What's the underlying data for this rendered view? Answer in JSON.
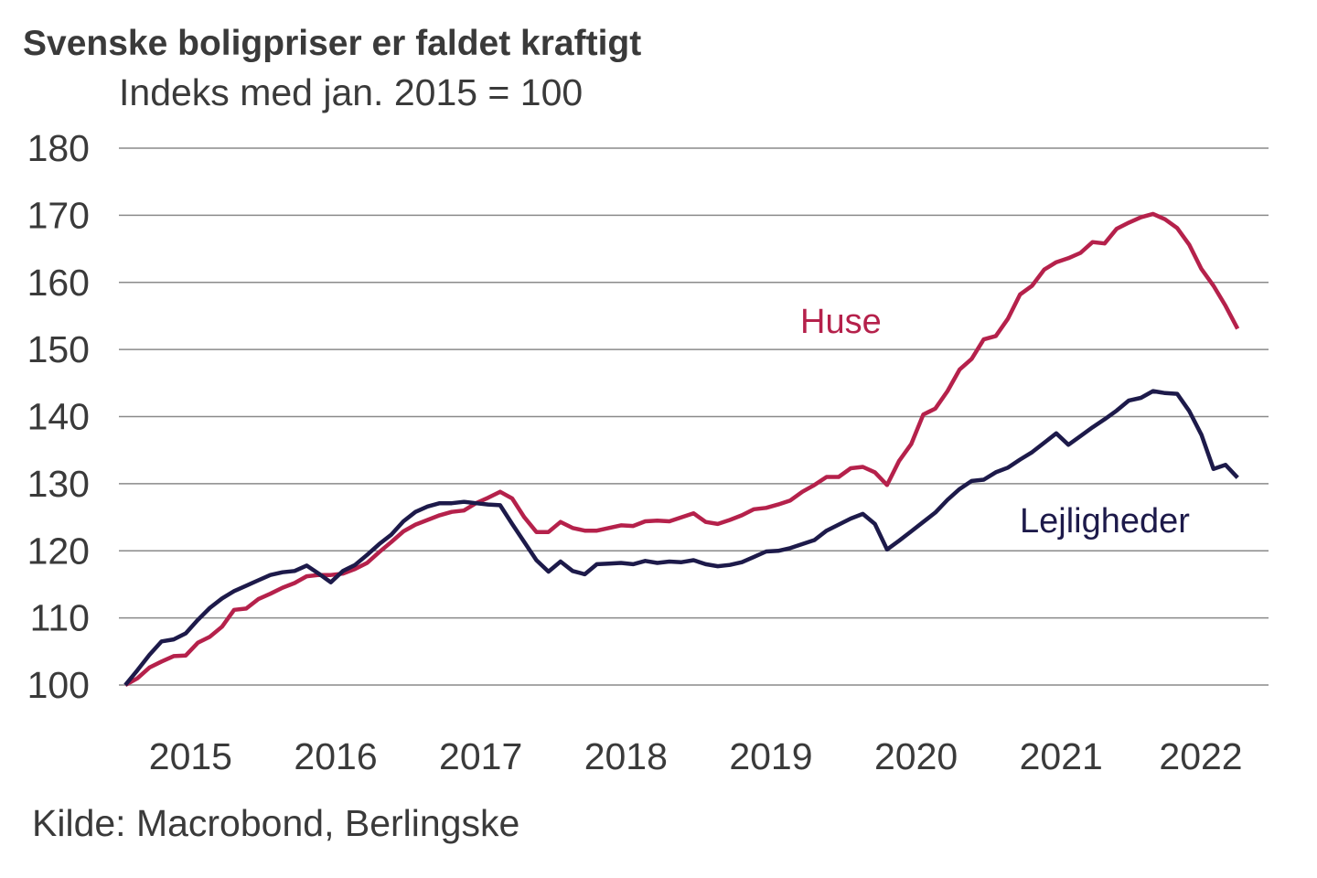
{
  "chart_data": {
    "type": "line",
    "title": "Svenske boligpriser er faldet kraftigt",
    "subtitle": "Indeks med jan. 2015 = 100",
    "source": "Kilde: Macrobond, Berlingske",
    "xlabel": "",
    "ylabel": "",
    "ylim": [
      100,
      180
    ],
    "yticks": [
      "100",
      "110",
      "120",
      "130",
      "140",
      "150",
      "160",
      "170",
      "180"
    ],
    "xticks": [
      "2015",
      "2016",
      "2017",
      "2018",
      "2019",
      "2020",
      "2021",
      "2022"
    ],
    "x_start": "2015-01",
    "x_frequency": "monthly",
    "grid": true,
    "series": [
      {
        "name": "Huse",
        "color": "#b5214b",
        "values": [
          100,
          101.0,
          102.6,
          103.5,
          104.3,
          104.4,
          106.3,
          107.2,
          108.7,
          111.2,
          111.4,
          112.8,
          113.6,
          114.5,
          115.2,
          116.2,
          116.4,
          116.4,
          116.6,
          117.3,
          118.2,
          119.8,
          121.3,
          122.9,
          123.9,
          124.6,
          125.3,
          125.8,
          126.0,
          127.1,
          127.9,
          128.8,
          127.8,
          125.0,
          122.8,
          122.8,
          124.3,
          123.4,
          123.0,
          123.0,
          123.4,
          123.8,
          123.7,
          124.4,
          124.5,
          124.4,
          125.0,
          125.6,
          124.3,
          124.0,
          124.6,
          125.3,
          126.2,
          126.4,
          126.9,
          127.5,
          128.8,
          129.8,
          131.0,
          131.0,
          132.3,
          132.5,
          131.7,
          129.8,
          133.4,
          135.9,
          140.3,
          141.2,
          143.8,
          147.0,
          148.6,
          151.5,
          152.0,
          154.6,
          158.2,
          159.5,
          161.9,
          163.0,
          163.6,
          164.4,
          166.0,
          165.8,
          168.0,
          168.9,
          169.7,
          170.2,
          169.4,
          168.1,
          165.6,
          162.0,
          159.5,
          156.5,
          153.1
        ]
      },
      {
        "name": "Lejligheder",
        "color": "#1d1a4a",
        "values": [
          100,
          102.2,
          104.5,
          106.5,
          106.8,
          107.7,
          109.7,
          111.5,
          112.9,
          114.0,
          114.8,
          115.6,
          116.4,
          116.8,
          117.0,
          117.8,
          116.6,
          115.3,
          117.0,
          117.9,
          119.4,
          121.0,
          122.4,
          124.4,
          125.8,
          126.6,
          127.1,
          127.1,
          127.3,
          127.1,
          126.9,
          126.8,
          124.0,
          121.3,
          118.6,
          116.9,
          118.4,
          117.0,
          116.5,
          118.0,
          118.1,
          118.2,
          118.0,
          118.5,
          118.2,
          118.4,
          118.3,
          118.6,
          118.0,
          117.7,
          117.9,
          118.3,
          119.1,
          119.9,
          120.0,
          120.4,
          121.0,
          121.6,
          123.0,
          123.9,
          124.8,
          125.5,
          124.0,
          120.2,
          121.5,
          122.9,
          124.3,
          125.7,
          127.6,
          129.2,
          130.4,
          130.6,
          131.7,
          132.4,
          133.6,
          134.7,
          136.1,
          137.5,
          135.8,
          137.1,
          138.4,
          139.6,
          140.9,
          142.4,
          142.8,
          143.8,
          143.5,
          143.4,
          140.8,
          137.3,
          132.2,
          132.8,
          130.9
        ]
      }
    ]
  }
}
